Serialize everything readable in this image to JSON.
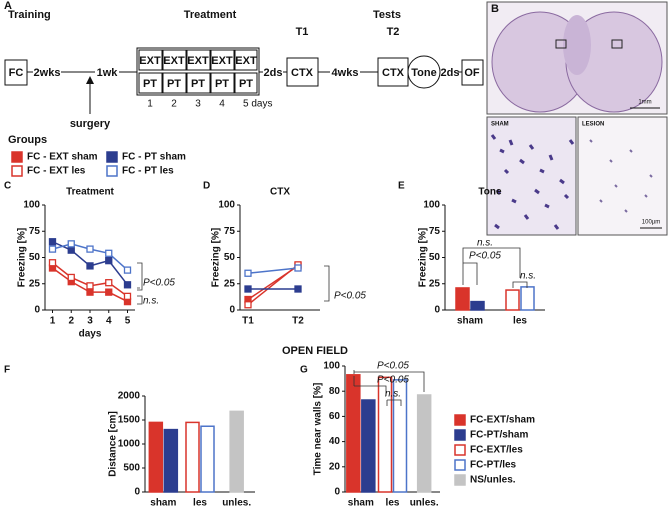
{
  "protocol": {
    "panel": "A",
    "training": "Training",
    "treatment": "Treatment",
    "tests": "Tests",
    "t1": "T1",
    "t2": "T2",
    "fc": "FC",
    "wks2": "2wks",
    "wk1": "1wk",
    "ext": [
      "EXT",
      "EXT",
      "EXT",
      "EXT",
      "EXT"
    ],
    "pt": [
      "PT",
      "PT",
      "PT",
      "PT",
      "PT"
    ],
    "days": [
      "1",
      "2",
      "3",
      "4",
      "5 days"
    ],
    "ds1": "2ds",
    "ctx1": "CTX",
    "wks4": "4wks",
    "ctx2": "CTX",
    "tone": "Tone",
    "ds2": "2ds",
    "of": "OF",
    "surgery": "surgery"
  },
  "histology": {
    "panel": "B",
    "scale1": "1mm",
    "sham": "SHAM",
    "lesion": "LESION",
    "scale2": "100µm"
  },
  "groups": {
    "title": "Groups",
    "items": [
      {
        "label": "FC - EXT sham",
        "color": "#d9342b",
        "hollow": false
      },
      {
        "label": "FC - EXT les",
        "color": "#d9342b",
        "hollow": true
      },
      {
        "label": "FC - PT sham",
        "color": "#2c3d8f",
        "hollow": false
      },
      {
        "label": "FC - PT les",
        "color": "#4d74c9",
        "hollow": true
      }
    ]
  },
  "section_title": "OPEN FIELD",
  "chart_data": [
    {
      "type": "line",
      "panel": "C",
      "title": "Treatment",
      "xlabel": "days",
      "ylabel": "Freezing [%]",
      "x": [
        1,
        2,
        3,
        4,
        5
      ],
      "xlim": [
        0.6,
        5.4
      ],
      "xticks": [
        1,
        2,
        3,
        4,
        5
      ],
      "ylim": [
        0,
        100
      ],
      "yticks": [
        0,
        25,
        50,
        75,
        100
      ],
      "series": [
        {
          "color": "#d9342b",
          "hollow": false,
          "values": [
            40,
            27,
            17,
            17,
            8
          ]
        },
        {
          "color": "#d9342b",
          "hollow": true,
          "values": [
            45,
            31,
            23,
            26,
            13
          ]
        },
        {
          "color": "#2c3d8f",
          "hollow": false,
          "values": [
            65,
            57,
            42,
            47,
            24
          ]
        },
        {
          "color": "#4d74c9",
          "hollow": true,
          "values": [
            58,
            63,
            58,
            54,
            38
          ]
        }
      ],
      "annotations": [
        "P<0.05",
        "n.s."
      ]
    },
    {
      "type": "line",
      "panel": "D",
      "title": "CTX",
      "ylabel": "Freezing [%]",
      "categories": [
        "T1",
        "T2"
      ],
      "ylim": [
        0,
        100
      ],
      "yticks": [
        0,
        25,
        50,
        75,
        100
      ],
      "series": [
        {
          "color": "#d9342b",
          "hollow": false,
          "values": [
            10,
            42
          ]
        },
        {
          "color": "#d9342b",
          "hollow": true,
          "values": [
            5,
            43
          ]
        },
        {
          "color": "#2c3d8f",
          "hollow": false,
          "values": [
            20,
            20
          ]
        },
        {
          "color": "#4d74c9",
          "hollow": true,
          "values": [
            35,
            40
          ]
        }
      ],
      "annotations": [
        "P<0.05"
      ]
    },
    {
      "type": "bar",
      "panel": "E",
      "title": "Tone",
      "ylabel": "Freezing [%]",
      "categories": [
        "sham",
        "les"
      ],
      "ylim": [
        0,
        100
      ],
      "yticks": [
        0,
        25,
        50,
        75,
        100
      ],
      "series": [
        {
          "colors": [
            "#d9342b",
            "#d9342b"
          ],
          "hollow": [
            false,
            true
          ],
          "values": [
            21,
            19
          ]
        },
        {
          "colors": [
            "#2c3d8f",
            "#4d74c9"
          ],
          "hollow": [
            false,
            true
          ],
          "values": [
            8,
            22
          ]
        }
      ],
      "annotations": [
        "n.s.",
        "P<0.05",
        "n.s."
      ]
    },
    {
      "type": "bar",
      "panel": "F",
      "ylabel": "Distance [cm]",
      "categories": [
        "sham",
        "les",
        "unles."
      ],
      "ylim": [
        0,
        2000
      ],
      "yticks": [
        0,
        500,
        1000,
        1500,
        2000
      ],
      "series": [
        {
          "colors": [
            "#d9342b",
            "#d9342b",
            null
          ],
          "hollow": [
            false,
            true,
            false
          ],
          "values": [
            1450,
            1450,
            null
          ]
        },
        {
          "colors": [
            "#2c3d8f",
            "#4d74c9",
            null
          ],
          "hollow": [
            false,
            true,
            false
          ],
          "values": [
            1300,
            1370,
            null
          ]
        },
        {
          "colors": [
            null,
            null,
            "#c4c4c4"
          ],
          "hollow": [
            false,
            false,
            false
          ],
          "values": [
            null,
            null,
            1680
          ]
        }
      ]
    },
    {
      "type": "bar",
      "panel": "G",
      "ylabel": "Time near walls [%]",
      "categories": [
        "sham",
        "les",
        "unles."
      ],
      "ylim": [
        0,
        100
      ],
      "yticks": [
        0,
        20,
        40,
        60,
        80,
        100
      ],
      "series": [
        {
          "colors": [
            "#d9342b",
            "#d9342b",
            null
          ],
          "hollow": [
            false,
            true,
            false
          ],
          "values": [
            93,
            91,
            null
          ]
        },
        {
          "colors": [
            "#2c3d8f",
            "#4d74c9",
            null
          ],
          "hollow": [
            false,
            true,
            false
          ],
          "values": [
            73,
            89,
            null
          ]
        },
        {
          "colors": [
            null,
            null,
            "#c4c4c4"
          ],
          "hollow": [
            false,
            false,
            false
          ],
          "values": [
            null,
            null,
            77
          ]
        }
      ],
      "annotations": [
        "P<0.05",
        "P<0.05",
        "n.s."
      ],
      "legend": [
        {
          "label": "FC-EXT/sham",
          "color": "#d9342b",
          "hollow": false
        },
        {
          "label": "FC-PT/sham",
          "color": "#2c3d8f",
          "hollow": false
        },
        {
          "label": "FC-EXT/les",
          "color": "#d9342b",
          "hollow": true
        },
        {
          "label": "FC-PT/les",
          "color": "#4d74c9",
          "hollow": true
        },
        {
          "label": "NS/unles.",
          "color": "#c4c4c4",
          "hollow": false
        }
      ]
    }
  ]
}
